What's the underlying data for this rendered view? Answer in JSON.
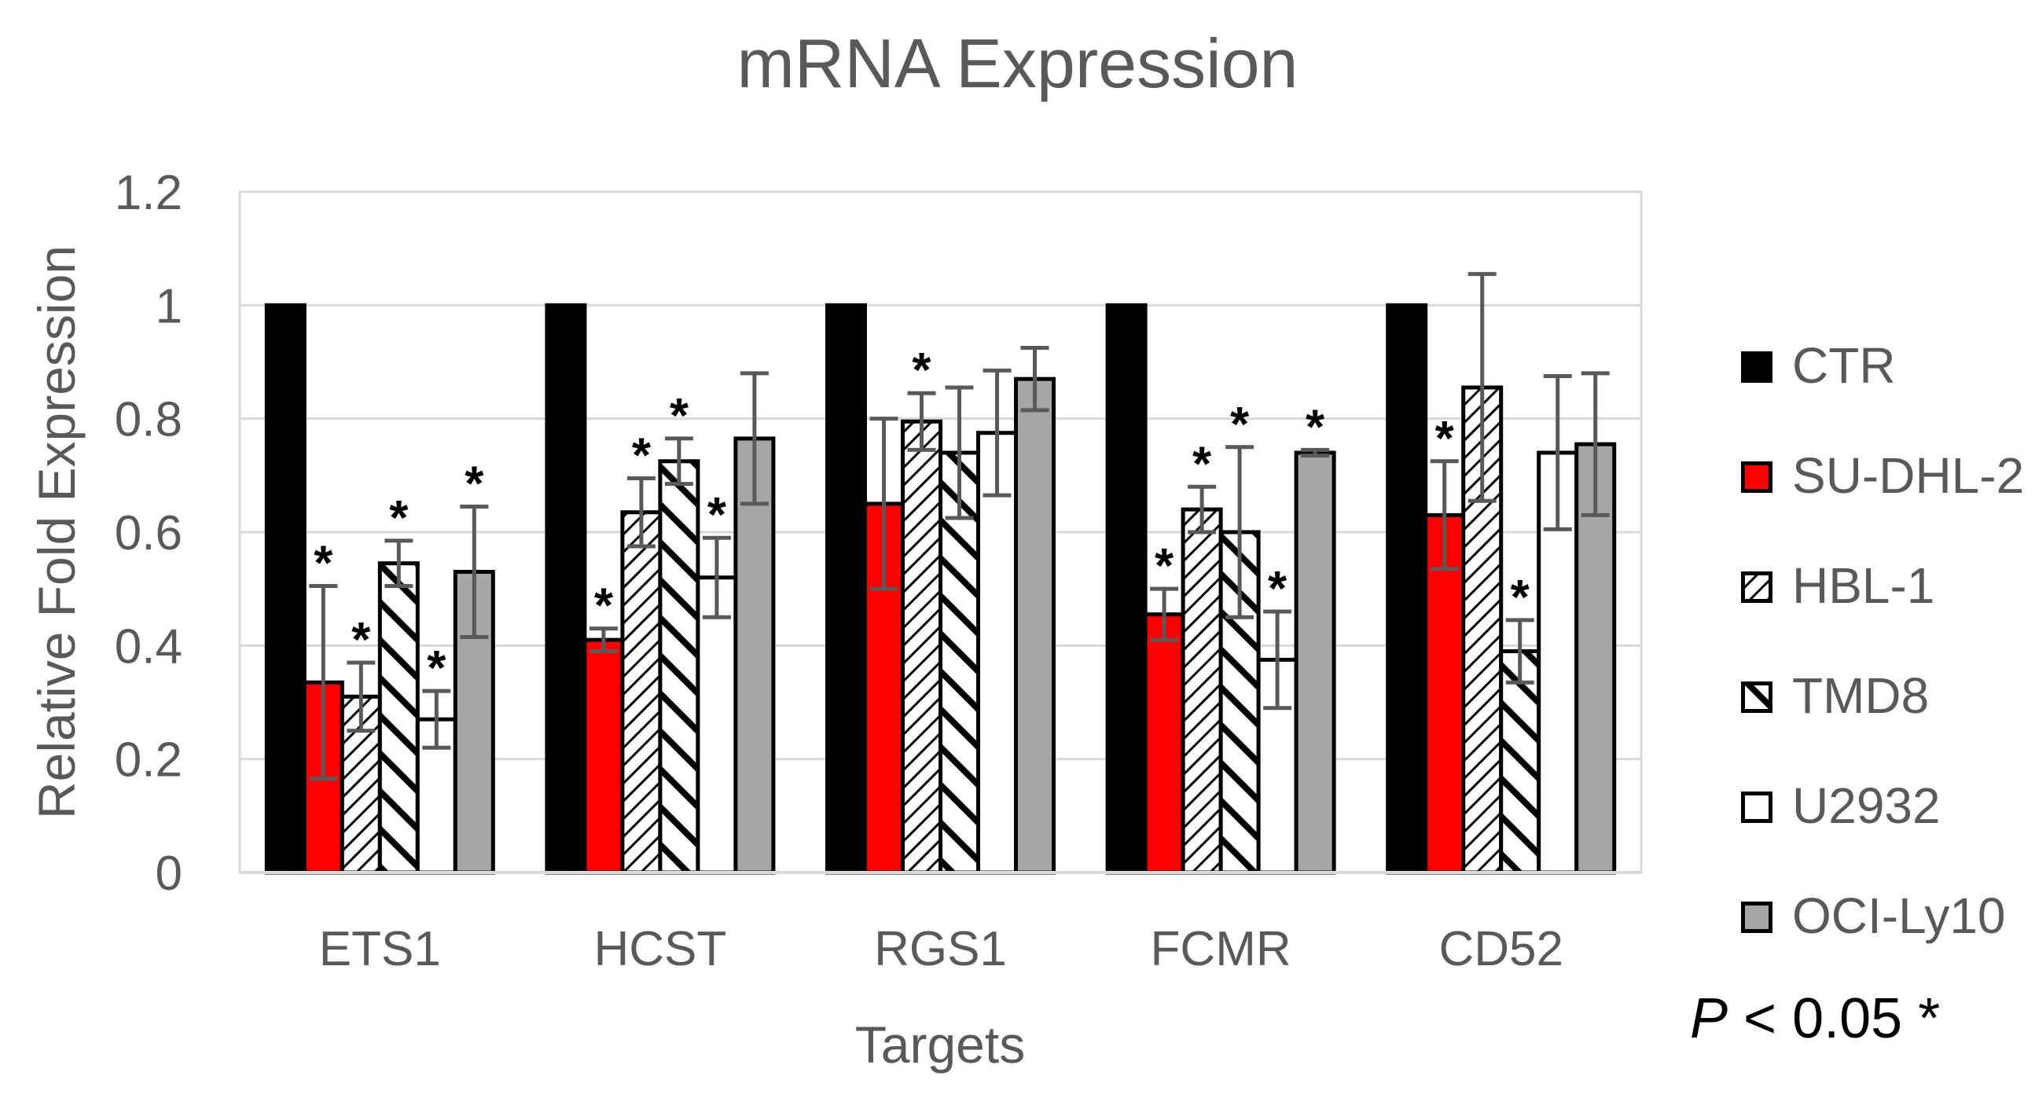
{
  "chart_data": {
    "type": "bar",
    "title": "mRNA Expression",
    "xlabel": "Targets",
    "ylabel": "Relative Fold Expression",
    "ylim": [
      0,
      1.2
    ],
    "yticks": [
      0,
      0.2,
      0.4,
      0.6,
      0.8,
      1,
      1.2
    ],
    "ytick_labels": [
      "0",
      "0.2",
      "0.4",
      "0.6",
      "0.8",
      "1",
      "1.2"
    ],
    "grid": true,
    "legend_position": "right",
    "categories": [
      "ETS1",
      "HCST",
      "RGS1",
      "FCMR",
      "CD52"
    ],
    "series": [
      {
        "name": "CTR",
        "color": "#000000",
        "pattern": "solid",
        "values": [
          1.0,
          1.0,
          1.0,
          1.0,
          1.0
        ],
        "errors": [
          0,
          0,
          0,
          0,
          0
        ],
        "significant": [
          false,
          false,
          false,
          false,
          false
        ]
      },
      {
        "name": "SU-DHL-2",
        "color": "#ff0000",
        "pattern": "solid",
        "values": [
          0.335,
          0.41,
          0.65,
          0.455,
          0.63
        ],
        "errors": [
          0.17,
          0.02,
          0.15,
          0.045,
          0.095
        ],
        "significant": [
          true,
          true,
          false,
          true,
          true
        ]
      },
      {
        "name": "HBL-1",
        "color": "#ffffff",
        "pattern": "fine-diagonal",
        "values": [
          0.31,
          0.635,
          0.795,
          0.64,
          0.855
        ],
        "errors": [
          0.06,
          0.06,
          0.05,
          0.04,
          0.2
        ],
        "significant": [
          true,
          true,
          true,
          true,
          false
        ]
      },
      {
        "name": "TMD8",
        "color": "#ffffff",
        "pattern": "wide-backslash",
        "values": [
          0.545,
          0.725,
          0.74,
          0.6,
          0.39
        ],
        "errors": [
          0.04,
          0.04,
          0.115,
          0.15,
          0.055
        ],
        "significant": [
          true,
          true,
          false,
          true,
          true
        ]
      },
      {
        "name": "U2932",
        "color": "#ffffff",
        "pattern": "open",
        "values": [
          0.27,
          0.52,
          0.775,
          0.375,
          0.74
        ],
        "errors": [
          0.05,
          0.07,
          0.11,
          0.085,
          0.135
        ],
        "significant": [
          true,
          true,
          false,
          true,
          false
        ]
      },
      {
        "name": "OCI-Ly10",
        "color": "#a6a6a6",
        "pattern": "solid",
        "values": [
          0.53,
          0.765,
          0.87,
          0.74,
          0.755
        ],
        "errors": [
          0.115,
          0.115,
          0.055,
          0.005,
          0.125
        ],
        "significant": [
          true,
          false,
          false,
          true,
          false
        ]
      }
    ],
    "significance_marker": "*",
    "annotation": {
      "prefix": "P",
      "text": " < 0.05 *"
    }
  }
}
